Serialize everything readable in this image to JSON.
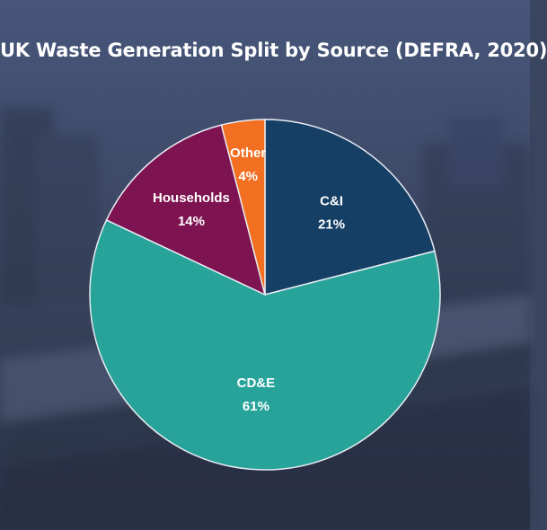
{
  "chart_data": {
    "type": "pie",
    "title": "UK Waste Generation Split by Source (DEFRA, 2020)",
    "slices": [
      {
        "label": "C&I",
        "value": 21,
        "value_label": "21%",
        "color": "#163f66"
      },
      {
        "label": "CD&E",
        "value": 61,
        "value_label": "61%",
        "color": "#27a39a"
      },
      {
        "label": "Households",
        "value": 14,
        "value_label": "14%",
        "color": "#7d1350"
      },
      {
        "label": "Other",
        "value": 4,
        "value_label": "4%",
        "color": "#f36f21"
      }
    ],
    "start_angle": "12 o'clock",
    "direction": "clockwise",
    "legend": "none"
  },
  "colors": {
    "background": "#3a4560",
    "slice_border": "#e8ecf2"
  }
}
